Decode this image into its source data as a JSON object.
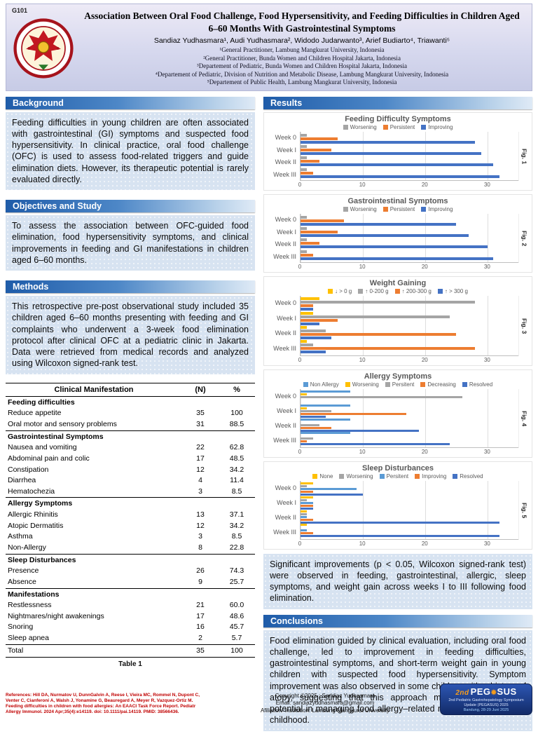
{
  "theme": {
    "section_blue": "#1f5ca9",
    "panel_blue": "#d7e3f1",
    "references_red": "#c00000",
    "pegasus_orange": "#f59c1c",
    "pegasus_blue": "#1d3c8f"
  },
  "poster": {
    "code": "G101",
    "title": "Association Between Oral Food Challenge, Food Hypersensitivity, and Feeding Difficulties in Children Aged 6–60 Months With Gastrointestinal Symptoms",
    "authors": "Sandiaz Yudhasmara¹, Audi Yudhasmara², Widodo Judarwanto³, Arief Budiarto⁴, Triawanti⁵",
    "affiliations": [
      "¹General Practitioner, Lambung Mangkurat University, Indonesia",
      "²General Practitioner, Bunda Women and Children Hospital Jakarta, Indonesia",
      "³Departement of Pediatric, Bunda Women and Children Hospital Jakarta, Indonesia",
      "⁴Departement of Pediatric, Division of Nutrition and Metabolic Disease, Lambung Mangkurat University, Indonesia",
      "⁵Departement of Public Health, Lambung Mangkurat University, Indonesia"
    ]
  },
  "sections": {
    "background": {
      "heading": "Background",
      "text": "Feeding difficulties in young children are often associated with gastrointestinal (GI) symptoms and suspected food hypersensitivity. In clinical practice, oral food challenge (OFC) is used to assess food-related triggers and guide elimination diets. However, its therapeutic potential is rarely evaluated directly."
    },
    "objectives": {
      "heading": "Objectives and Study",
      "text": "To assess the association between OFC-guided food elimination, food hypersensitivity symptoms, and clinical improvements in feeding and GI manifestations in children aged 6–60 months."
    },
    "methods": {
      "heading": "Methods",
      "text": "This retrospective pre-post observational study included 35 children aged 6–60 months presenting with feeding and GI complaints who underwent a 3-week food elimination protocol after clinical OFC at a pediatric clinic in Jakarta. Data were retrieved from medical records and analyzed using Wilcoxon signed-rank test."
    },
    "results": {
      "heading": "Results"
    },
    "significance": "Significant improvements (p < 0.05, Wilcoxon signed-rank test) were observed in feeding, gastrointestinal, allergic, sleep symptoms, and weight gain across weeks I to III following food elimination.",
    "conclusions": {
      "heading": "Conclusions",
      "text": "Food elimination guided by clinical evaluation, including oral food challenge, led to improvement in feeding difficulties, gastrointestinal symptoms, and short-term weight gain in young children with suspected food hypersensitivity. Symptom improvement was also observed in some children with a history of atopy, suggesting that this approach may have therapeutic potential in managing food allergy–related manifestations in early childhood."
    }
  },
  "table": {
    "caption": "Table 1",
    "headers": [
      "Clinical Manifestation",
      "(N)",
      "%"
    ],
    "groups": [
      {
        "name": "Feeding difficulties",
        "rows": [
          [
            "Reduce appetite",
            "35",
            "100"
          ],
          [
            "Oral motor and sensory problems",
            "31",
            "88.5"
          ]
        ]
      },
      {
        "name": "Gastrointestinal Symptoms",
        "rows": [
          [
            "Nausea and vomiting",
            "22",
            "62.8"
          ],
          [
            "Abdominal pain and colic",
            "17",
            "48.5"
          ],
          [
            "Constipation",
            "12",
            "34.2"
          ],
          [
            "Diarrhea",
            "4",
            "11.4"
          ],
          [
            "Hematochezia",
            "3",
            "8.5"
          ]
        ]
      },
      {
        "name": "Allergy Symptoms",
        "rows": [
          [
            "Allergic Rhinitis",
            "13",
            "37.1"
          ],
          [
            "Atopic Dermatitis",
            "12",
            "34.2"
          ],
          [
            "Asthma",
            "3",
            "8.5"
          ],
          [
            "Non-Allergy",
            "8",
            "22.8"
          ]
        ]
      },
      {
        "name": "Sleep Disturbances",
        "rows": [
          [
            "Presence",
            "26",
            "74.3"
          ],
          [
            "Absence",
            "9",
            "25.7"
          ]
        ]
      },
      {
        "name": "Manifestations",
        "rows": [
          [
            "Restlessness",
            "21",
            "60.0"
          ],
          [
            "Nightmares/night awakenings",
            "17",
            "48.6"
          ],
          [
            "Snoring",
            "16",
            "45.7"
          ],
          [
            "Sleep apnea",
            "2",
            "5.7"
          ]
        ]
      }
    ],
    "total": [
      "Total",
      "35",
      "100"
    ]
  },
  "chart_data": [
    {
      "type": "bar",
      "orientation": "horizontal",
      "title": "Feeding Difficulty Symptoms",
      "fig_label": "Fig. 1",
      "categories": [
        "Week 0",
        "Week I",
        "Week II",
        "Week III"
      ],
      "series": [
        {
          "name": "Worsening",
          "color": "#A5A5A5",
          "values": [
            1,
            1,
            1,
            1
          ]
        },
        {
          "name": "Persistent",
          "color": "#ED7D31",
          "values": [
            6,
            5,
            3,
            2
          ]
        },
        {
          "name": "Improving",
          "color": "#4472C4",
          "values": [
            28,
            29,
            31,
            32
          ]
        }
      ],
      "xlim": [
        0,
        35
      ],
      "xticks": [
        0,
        10,
        20,
        30
      ],
      "grid": true,
      "legend_position": "top"
    },
    {
      "type": "bar",
      "orientation": "horizontal",
      "title": "Gastrointestinal Symptoms",
      "fig_label": "Fig. 2",
      "categories": [
        "Week 0",
        "Week I",
        "Week II",
        "Week III"
      ],
      "series": [
        {
          "name": "Worsening",
          "color": "#A5A5A5",
          "values": [
            1,
            1,
            1,
            1
          ]
        },
        {
          "name": "Persistent",
          "color": "#ED7D31",
          "values": [
            7,
            6,
            3,
            2
          ]
        },
        {
          "name": "Improving",
          "color": "#4472C4",
          "values": [
            25,
            27,
            30,
            31
          ]
        }
      ],
      "xlim": [
        0,
        35
      ],
      "xticks": [
        0,
        10,
        20,
        30
      ],
      "grid": true,
      "legend_position": "top"
    },
    {
      "type": "bar",
      "orientation": "horizontal",
      "title": "Weight Gaining",
      "fig_label": "Fig. 3",
      "categories": [
        "Week 0",
        "Week I",
        "Week II",
        "Week III"
      ],
      "series": [
        {
          "name": "↓ > 0 g",
          "color": "#FFC000",
          "values": [
            3,
            2,
            1,
            1
          ]
        },
        {
          "name": "↑ 0-200 g",
          "color": "#A5A5A5",
          "values": [
            28,
            24,
            4,
            2
          ]
        },
        {
          "name": "↑ 200-300 g",
          "color": "#ED7D31",
          "values": [
            2,
            6,
            25,
            28
          ]
        },
        {
          "name": "↑ > 300 g",
          "color": "#4472C4",
          "values": [
            2,
            3,
            5,
            4
          ]
        }
      ],
      "xlim": [
        0,
        35
      ],
      "xticks": [
        0,
        10,
        20,
        30
      ],
      "grid": true,
      "legend_position": "top"
    },
    {
      "type": "bar",
      "orientation": "horizontal",
      "title": "Allergy Symptoms",
      "fig_label": "Fig. 4",
      "categories": [
        "Week 0",
        "Week I",
        "Week II",
        "Week III"
      ],
      "series": [
        {
          "name": "Non Allergy",
          "color": "#5B9BD5",
          "values": [
            8,
            8,
            8,
            8
          ]
        },
        {
          "name": "Worsening",
          "color": "#FFC000",
          "values": [
            1,
            1,
            0,
            0
          ]
        },
        {
          "name": "Persitent",
          "color": "#A5A5A5",
          "values": [
            26,
            5,
            3,
            2
          ]
        },
        {
          "name": "Decreasing",
          "color": "#ED7D31",
          "values": [
            0,
            17,
            5,
            1
          ]
        },
        {
          "name": "Resolved",
          "color": "#4472C4",
          "values": [
            0,
            4,
            19,
            24
          ]
        }
      ],
      "xlim": [
        0,
        35
      ],
      "xticks": [
        0,
        10,
        20,
        30
      ],
      "grid": true,
      "legend_position": "top"
    },
    {
      "type": "bar",
      "orientation": "horizontal",
      "title": "Sleep Disturbances",
      "fig_label": "Fig. 5",
      "categories": [
        "Week 0",
        "Week I",
        "Week II",
        "Week III"
      ],
      "series": [
        {
          "name": "None",
          "color": "#FFC000",
          "values": [
            2,
            2,
            1,
            1
          ]
        },
        {
          "name": "Worsening",
          "color": "#A5A5A5",
          "values": [
            1,
            1,
            1,
            0
          ]
        },
        {
          "name": "Persitent",
          "color": "#5B9BD5",
          "values": [
            9,
            2,
            1,
            1
          ]
        },
        {
          "name": "Improving",
          "color": "#ED7D31",
          "values": [
            2,
            2,
            2,
            2
          ]
        },
        {
          "name": "Resolved",
          "color": "#4472C4",
          "values": [
            10,
            2,
            32,
            32
          ]
        }
      ],
      "xlim": [
        0,
        35
      ],
      "xticks": [
        0,
        10,
        20,
        30
      ],
      "grid": true,
      "legend_position": "top"
    }
  ],
  "footer": {
    "references": "References:  Hill DA, Nurmatov U, DunnGalvin A, Reese I, Vieira MC, Rommel N, Dupont C, Venter C, Cianferoni A, Walsh J, Yonamine G, Beauregard A, Meyer R, Vazquez-Ortiz M. Feeding difficulties in children with food allergies: An EAACI Task Force Report. Pediatr Allergy Immunol. 2024 Apr;35(4):e14119. doi: 10.1111/pai.14119. PMID: 38566436.",
    "copyright_line1": "Copyright ©2025 : Sandiaz Yudhasmara",
    "copyright_line2": "Email: sandiazyudhasmara@gmail.com",
    "copyright_line3": "Afiliation/ Institution: Lambung Mangkurat University",
    "pegasus": {
      "badge_2nd": "2nd",
      "badge_name_left": "PEG",
      "badge_sun": "✹",
      "badge_name_right": "SUS",
      "subtitle": "2nd Pediatric Gastrohepatology Symposium Update (PEGASUS) 2025",
      "date": "Bandung, 28-29 Juni 2025"
    }
  }
}
